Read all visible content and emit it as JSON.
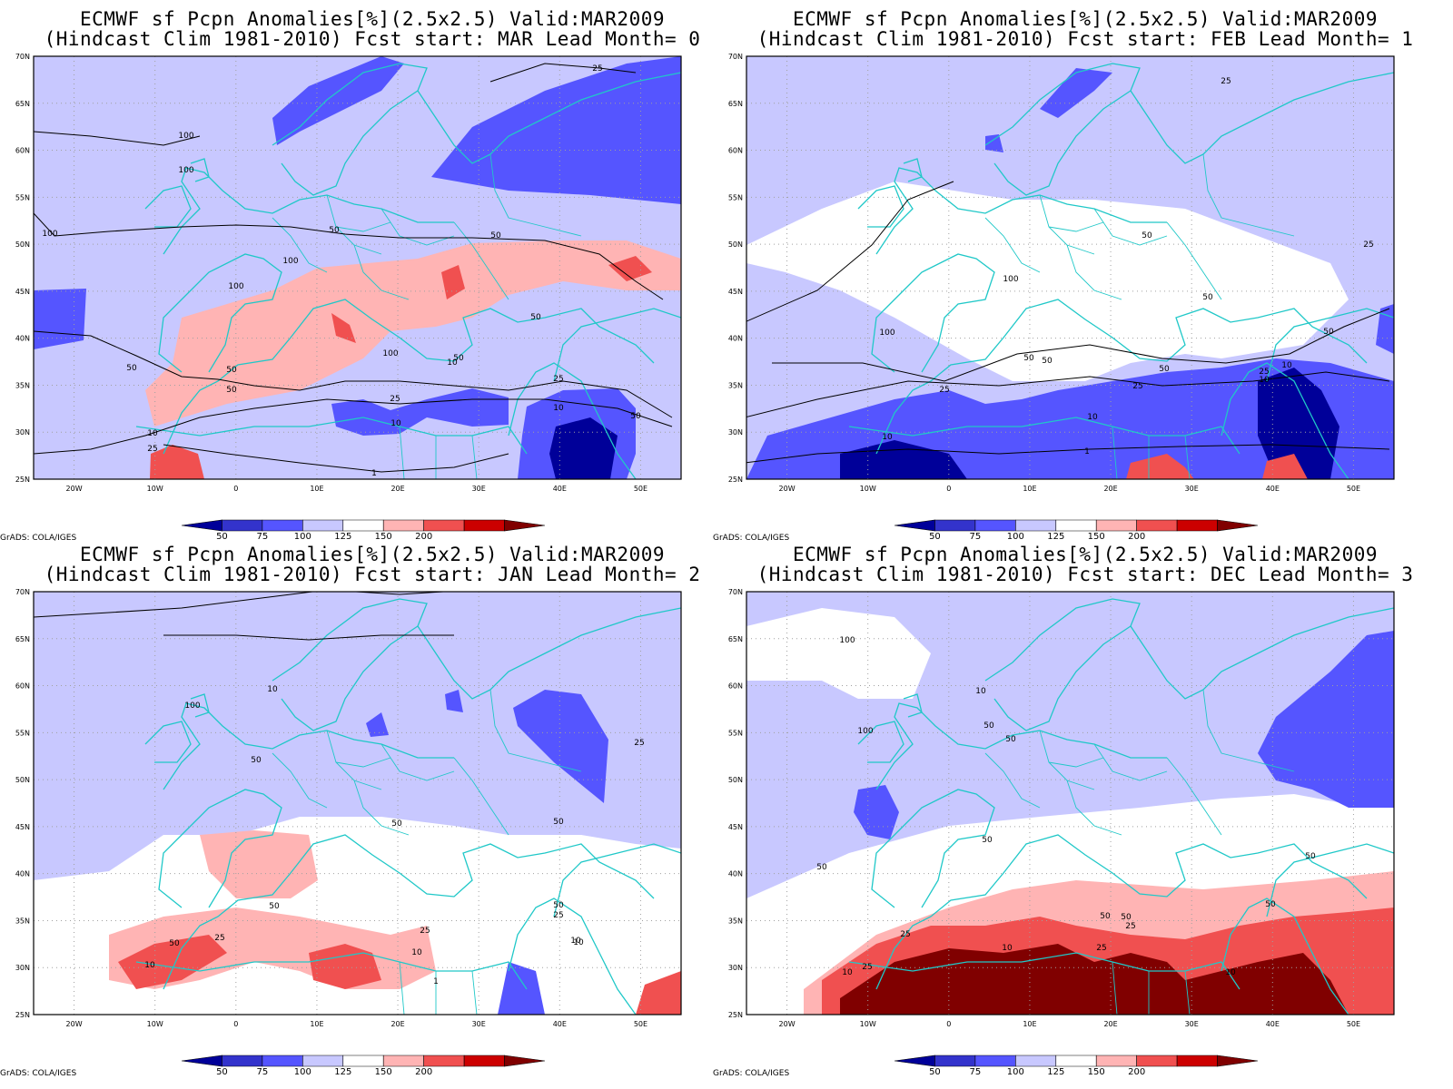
{
  "panels": [
    {
      "title_line1": "ECMWF sf Pcpn Anomalies[%](2.5x2.5) Valid:MAR2009",
      "title_line2": "(Hindcast Clim 1981-2010) Fcst start: MAR  Lead Month= 0",
      "contour_labels": [
        "100",
        "100",
        "100",
        "50",
        "50",
        "100",
        "100",
        "50",
        "50",
        "50",
        "100",
        "50",
        "50",
        "25",
        "10",
        "25",
        "10",
        "10",
        "25",
        "50",
        "1",
        "25",
        "10"
      ]
    },
    {
      "title_line1": "ECMWF sf Pcpn Anomalies[%](2.5x2.5) Valid:MAR2009",
      "title_line2": "(Hindcast Clim 1981-2010) Fcst start: FEB  Lead Month= 1",
      "contour_labels": [
        "25",
        "50",
        "25",
        "100",
        "50",
        "100",
        "50",
        "50",
        "50",
        "25",
        "25",
        "10",
        "10",
        "25",
        "10",
        "50",
        "1",
        "10"
      ]
    },
    {
      "title_line1": "ECMWF sf Pcpn Anomalies[%](2.5x2.5) Valid:MAR2009",
      "title_line2": "(Hindcast Clim 1981-2010) Fcst start: JAN  Lead Month= 2",
      "contour_labels": [
        "10",
        "100",
        "50",
        "25",
        "50",
        "50",
        "50",
        "50",
        "25",
        "50",
        "25",
        "10",
        "10",
        "25",
        "10",
        "1",
        "10"
      ]
    },
    {
      "title_line1": "ECMWF sf Pcpn Anomalies[%](2.5x2.5) Valid:MAR2009",
      "title_line2": "(Hindcast Clim 1981-2010) Fcst start: DEC  Lead Month= 3",
      "contour_labels": [
        "100",
        "10",
        "100",
        "50",
        "50",
        "50",
        "50",
        "50",
        "50",
        "50",
        "25",
        "50",
        "25",
        "10",
        "25",
        "10",
        "25",
        "10"
      ]
    }
  ],
  "lat_labels": [
    "70N",
    "65N",
    "60N",
    "55N",
    "50N",
    "45N",
    "40N",
    "35N",
    "30N",
    "25N"
  ],
  "lon_labels": [
    "20W",
    "10W",
    "0",
    "10E",
    "20E",
    "30E",
    "40E",
    "50E"
  ],
  "colorbar": {
    "labels": [
      "50",
      "75",
      "100",
      "125",
      "150",
      "200"
    ],
    "colors": [
      "#000099",
      "#3333cc",
      "#5555ff",
      "#c8c8ff",
      "#ffffff",
      "#ffb4b4",
      "#f05050",
      "#cc0000",
      "#800000"
    ]
  },
  "credit": "GrADS: COLA/IGES",
  "colors": {
    "coast": "#20c8c8",
    "grid": "#a0a0a0",
    "contour": "#000000",
    "blue_dark": "#000099",
    "blue": "#5555ff",
    "blue_light": "#c8c8ff",
    "red_light": "#ffb4b4",
    "red": "#f05050",
    "red_dark": "#800000"
  }
}
